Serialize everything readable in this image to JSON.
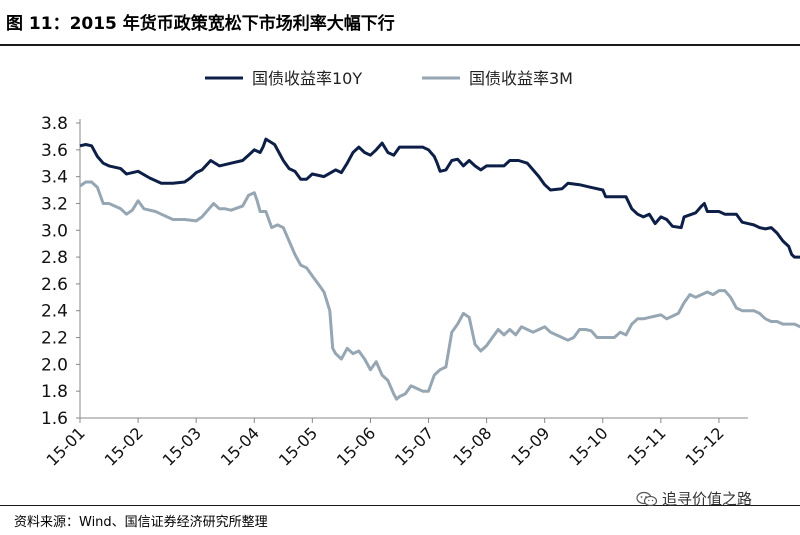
{
  "header": {
    "title": "图  11：2015 年货币政策宽松下市场利率大幅下行"
  },
  "footer": {
    "source": "资料来源：Wind、国信证券经济研究所整理",
    "watermark": "追寻价值之路",
    "watermark_icon": "wechat-icon"
  },
  "colors": {
    "series_10y": "#0d1f47",
    "series_3m": "#96a6b3"
  },
  "chart_data": {
    "type": "line",
    "ylim": [
      1.6,
      3.8
    ],
    "ytick_labels": [
      "1.6",
      "1.8",
      "2.0",
      "2.2",
      "2.4",
      "2.6",
      "2.8",
      "3.0",
      "3.2",
      "3.4",
      "3.6",
      "3.8"
    ],
    "categories": [
      "15-01",
      "15-02",
      "15-03",
      "15-04",
      "15-05",
      "15-06",
      "15-07",
      "15-08",
      "15-09",
      "15-10",
      "15-11",
      "15-12"
    ],
    "legend_position": "top-center",
    "grid": false,
    "series": [
      {
        "name": "国债收益率10Y",
        "values": [
          [
            0.0,
            3.63
          ],
          [
            0.1,
            3.64
          ],
          [
            0.2,
            3.63
          ],
          [
            0.3,
            3.55
          ],
          [
            0.4,
            3.5
          ],
          [
            0.5,
            3.48
          ],
          [
            0.7,
            3.46
          ],
          [
            0.8,
            3.42
          ],
          [
            1.0,
            3.44
          ],
          [
            1.2,
            3.39
          ],
          [
            1.4,
            3.35
          ],
          [
            1.6,
            3.35
          ],
          [
            1.8,
            3.36
          ],
          [
            1.9,
            3.39
          ],
          [
            2.0,
            3.43
          ],
          [
            2.1,
            3.45
          ],
          [
            2.25,
            3.52
          ],
          [
            2.4,
            3.48
          ],
          [
            2.6,
            3.5
          ],
          [
            2.8,
            3.52
          ],
          [
            2.9,
            3.56
          ],
          [
            3.0,
            3.6
          ],
          [
            3.1,
            3.58
          ],
          [
            3.15,
            3.62
          ],
          [
            3.2,
            3.68
          ],
          [
            3.35,
            3.64
          ],
          [
            3.5,
            3.52
          ],
          [
            3.6,
            3.46
          ],
          [
            3.7,
            3.44
          ],
          [
            3.8,
            3.38
          ],
          [
            3.9,
            3.38
          ],
          [
            4.0,
            3.42
          ],
          [
            4.2,
            3.4
          ],
          [
            4.4,
            3.45
          ],
          [
            4.5,
            3.43
          ],
          [
            4.6,
            3.5
          ],
          [
            4.7,
            3.58
          ],
          [
            4.8,
            3.62
          ],
          [
            4.9,
            3.58
          ],
          [
            5.0,
            3.56
          ],
          [
            5.1,
            3.6
          ],
          [
            5.2,
            3.65
          ],
          [
            5.3,
            3.58
          ],
          [
            5.4,
            3.56
          ],
          [
            5.5,
            3.62
          ],
          [
            5.7,
            3.62
          ],
          [
            5.9,
            3.62
          ],
          [
            6.0,
            3.6
          ],
          [
            6.1,
            3.55
          ],
          [
            6.15,
            3.5
          ],
          [
            6.2,
            3.44
          ],
          [
            6.3,
            3.45
          ],
          [
            6.4,
            3.52
          ],
          [
            6.5,
            3.53
          ],
          [
            6.6,
            3.48
          ],
          [
            6.7,
            3.52
          ],
          [
            6.8,
            3.48
          ],
          [
            6.9,
            3.45
          ],
          [
            7.0,
            3.48
          ],
          [
            7.2,
            3.48
          ],
          [
            7.3,
            3.48
          ],
          [
            7.4,
            3.52
          ],
          [
            7.55,
            3.52
          ],
          [
            7.7,
            3.5
          ],
          [
            7.8,
            3.45
          ],
          [
            7.9,
            3.4
          ],
          [
            8.0,
            3.34
          ],
          [
            8.1,
            3.3
          ],
          [
            8.3,
            3.31
          ],
          [
            8.4,
            3.35
          ],
          [
            8.6,
            3.34
          ],
          [
            8.8,
            3.32
          ],
          [
            9.0,
            3.3
          ],
          [
            9.05,
            3.25
          ],
          [
            9.2,
            3.25
          ],
          [
            9.4,
            3.25
          ],
          [
            9.5,
            3.16
          ],
          [
            9.6,
            3.12
          ],
          [
            9.7,
            3.1
          ],
          [
            9.8,
            3.12
          ],
          [
            9.9,
            3.05
          ],
          [
            10.0,
            3.1
          ],
          [
            10.1,
            3.08
          ],
          [
            10.2,
            3.03
          ],
          [
            10.35,
            3.02
          ],
          [
            10.4,
            3.1
          ],
          [
            10.6,
            3.13
          ],
          [
            10.7,
            3.18
          ],
          [
            10.75,
            3.2
          ],
          [
            10.8,
            3.14
          ],
          [
            11.0,
            3.14
          ],
          [
            11.1,
            3.12
          ],
          [
            11.3,
            3.12
          ],
          [
            11.4,
            3.06
          ],
          [
            11.5,
            3.05
          ],
          [
            11.6,
            3.04
          ],
          [
            11.7,
            3.02
          ],
          [
            11.8,
            3.01
          ],
          [
            11.9,
            3.02
          ],
          [
            12.0,
            2.98
          ],
          [
            12.1,
            2.92
          ],
          [
            12.2,
            2.88
          ],
          [
            12.25,
            2.82
          ],
          [
            12.3,
            2.8
          ],
          [
            12.4,
            2.8
          ],
          [
            12.5,
            2.82
          ]
        ]
      },
      {
        "name": "国债收益率3M",
        "values": [
          [
            0.0,
            3.33
          ],
          [
            0.1,
            3.36
          ],
          [
            0.2,
            3.36
          ],
          [
            0.3,
            3.32
          ],
          [
            0.4,
            3.2
          ],
          [
            0.5,
            3.2
          ],
          [
            0.7,
            3.16
          ],
          [
            0.8,
            3.12
          ],
          [
            0.9,
            3.15
          ],
          [
            1.0,
            3.22
          ],
          [
            1.1,
            3.16
          ],
          [
            1.3,
            3.14
          ],
          [
            1.4,
            3.12
          ],
          [
            1.6,
            3.08
          ],
          [
            1.8,
            3.08
          ],
          [
            2.0,
            3.07
          ],
          [
            2.1,
            3.1
          ],
          [
            2.2,
            3.15
          ],
          [
            2.3,
            3.2
          ],
          [
            2.4,
            3.16
          ],
          [
            2.5,
            3.16
          ],
          [
            2.6,
            3.15
          ],
          [
            2.8,
            3.18
          ],
          [
            2.9,
            3.26
          ],
          [
            3.0,
            3.28
          ],
          [
            3.05,
            3.22
          ],
          [
            3.1,
            3.14
          ],
          [
            3.2,
            3.14
          ],
          [
            3.3,
            3.02
          ],
          [
            3.4,
            3.04
          ],
          [
            3.5,
            3.02
          ],
          [
            3.6,
            2.92
          ],
          [
            3.7,
            2.82
          ],
          [
            3.8,
            2.74
          ],
          [
            3.9,
            2.72
          ],
          [
            4.0,
            2.66
          ],
          [
            4.1,
            2.6
          ],
          [
            4.2,
            2.54
          ],
          [
            4.3,
            2.4
          ],
          [
            4.35,
            2.12
          ],
          [
            4.4,
            2.08
          ],
          [
            4.5,
            2.04
          ],
          [
            4.6,
            2.12
          ],
          [
            4.7,
            2.08
          ],
          [
            4.8,
            2.1
          ],
          [
            4.9,
            2.04
          ],
          [
            5.0,
            1.96
          ],
          [
            5.1,
            2.02
          ],
          [
            5.2,
            1.92
          ],
          [
            5.3,
            1.88
          ],
          [
            5.4,
            1.78
          ],
          [
            5.45,
            1.74
          ],
          [
            5.5,
            1.76
          ],
          [
            5.6,
            1.78
          ],
          [
            5.7,
            1.84
          ],
          [
            5.8,
            1.82
          ],
          [
            5.9,
            1.8
          ],
          [
            6.0,
            1.8
          ],
          [
            6.1,
            1.92
          ],
          [
            6.2,
            1.96
          ],
          [
            6.3,
            1.98
          ],
          [
            6.4,
            2.24
          ],
          [
            6.5,
            2.3
          ],
          [
            6.6,
            2.38
          ],
          [
            6.7,
            2.35
          ],
          [
            6.75,
            2.25
          ],
          [
            6.8,
            2.15
          ],
          [
            6.9,
            2.1
          ],
          [
            7.0,
            2.14
          ],
          [
            7.1,
            2.2
          ],
          [
            7.2,
            2.26
          ],
          [
            7.3,
            2.22
          ],
          [
            7.4,
            2.26
          ],
          [
            7.5,
            2.22
          ],
          [
            7.6,
            2.28
          ],
          [
            7.7,
            2.26
          ],
          [
            7.8,
            2.24
          ],
          [
            7.9,
            2.26
          ],
          [
            8.0,
            2.28
          ],
          [
            8.1,
            2.24
          ],
          [
            8.2,
            2.22
          ],
          [
            8.3,
            2.2
          ],
          [
            8.4,
            2.18
          ],
          [
            8.5,
            2.2
          ],
          [
            8.6,
            2.26
          ],
          [
            8.7,
            2.26
          ],
          [
            8.8,
            2.25
          ],
          [
            8.9,
            2.2
          ],
          [
            9.0,
            2.2
          ],
          [
            9.1,
            2.2
          ],
          [
            9.2,
            2.2
          ],
          [
            9.3,
            2.24
          ],
          [
            9.4,
            2.22
          ],
          [
            9.5,
            2.3
          ],
          [
            9.6,
            2.34
          ],
          [
            9.7,
            2.34
          ],
          [
            9.8,
            2.35
          ],
          [
            9.9,
            2.36
          ],
          [
            10.0,
            2.37
          ],
          [
            10.1,
            2.34
          ],
          [
            10.2,
            2.36
          ],
          [
            10.3,
            2.38
          ],
          [
            10.4,
            2.46
          ],
          [
            10.5,
            2.52
          ],
          [
            10.6,
            2.5
          ],
          [
            10.7,
            2.52
          ],
          [
            10.8,
            2.54
          ],
          [
            10.9,
            2.52
          ],
          [
            11.0,
            2.55
          ],
          [
            11.1,
            2.55
          ],
          [
            11.2,
            2.5
          ],
          [
            11.3,
            2.42
          ],
          [
            11.4,
            2.4
          ],
          [
            11.6,
            2.4
          ],
          [
            11.7,
            2.38
          ],
          [
            11.8,
            2.34
          ],
          [
            11.9,
            2.32
          ],
          [
            12.0,
            2.32
          ],
          [
            12.1,
            2.3
          ],
          [
            12.3,
            2.3
          ],
          [
            12.4,
            2.28
          ],
          [
            12.5,
            2.25
          ]
        ]
      }
    ]
  }
}
